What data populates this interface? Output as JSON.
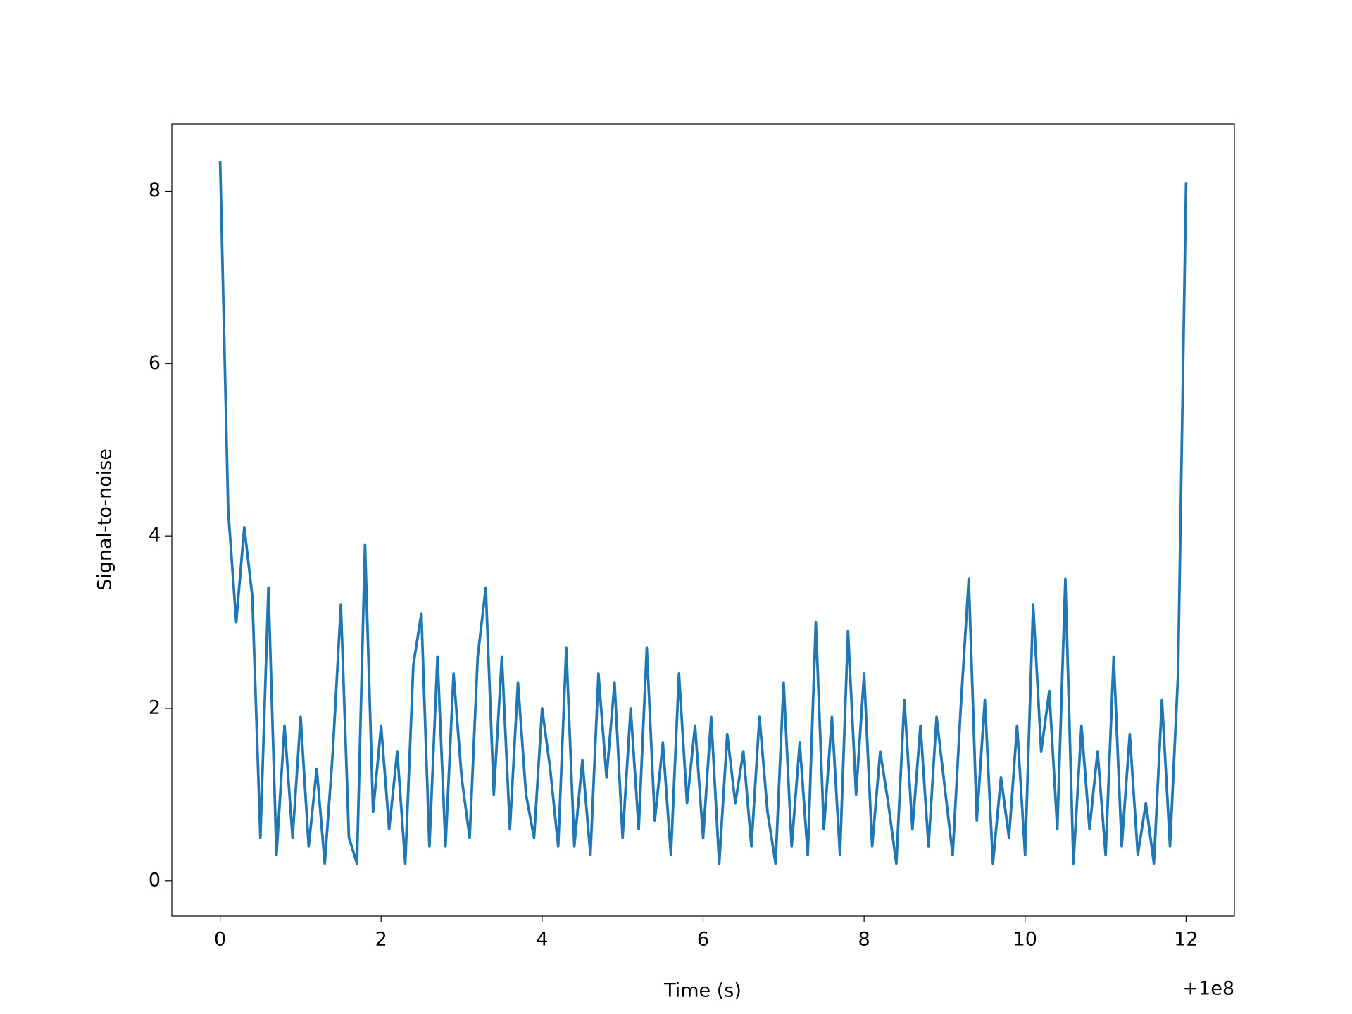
{
  "chart_data": {
    "type": "line",
    "xlabel": "Time (s)",
    "ylabel": "Signal-to-noise",
    "x_offset_label": "+1e8",
    "xlim": [
      -0.6,
      12.6
    ],
    "ylim": [
      -0.41,
      8.78
    ],
    "xticks": [
      0,
      2,
      4,
      6,
      8,
      10,
      12
    ],
    "yticks": [
      0,
      2,
      4,
      6,
      8
    ],
    "grid": false,
    "x": [
      0.0,
      0.1,
      0.2,
      0.3,
      0.4,
      0.5,
      0.6,
      0.7,
      0.8,
      0.9,
      1.0,
      1.1,
      1.2,
      1.3,
      1.4,
      1.5,
      1.6,
      1.7,
      1.8,
      1.9,
      2.0,
      2.1,
      2.2,
      2.3,
      2.4,
      2.5,
      2.6,
      2.7,
      2.8,
      2.9,
      3.0,
      3.1,
      3.2,
      3.3,
      3.4,
      3.5,
      3.6,
      3.7,
      3.8,
      3.9,
      4.0,
      4.1,
      4.2,
      4.3,
      4.4,
      4.5,
      4.6,
      4.7,
      4.8,
      4.9,
      5.0,
      5.1,
      5.2,
      5.3,
      5.4,
      5.5,
      5.6,
      5.7,
      5.8,
      5.9,
      6.0,
      6.1,
      6.2,
      6.3,
      6.4,
      6.5,
      6.6,
      6.7,
      6.8,
      6.9,
      7.0,
      7.1,
      7.2,
      7.3,
      7.4,
      7.5,
      7.6,
      7.7,
      7.8,
      7.9,
      8.0,
      8.1,
      8.2,
      8.3,
      8.4,
      8.5,
      8.6,
      8.7,
      8.8,
      8.9,
      9.0,
      9.1,
      9.2,
      9.3,
      9.4,
      9.5,
      9.6,
      9.7,
      9.8,
      9.9,
      10.0,
      10.1,
      10.2,
      10.3,
      10.4,
      10.5,
      10.6,
      10.7,
      10.8,
      10.9,
      11.0,
      11.1,
      11.2,
      11.3,
      11.4,
      11.5,
      11.6,
      11.7,
      11.8,
      11.9,
      12.0
    ],
    "series": [
      {
        "color": "#1f77b4",
        "values": [
          8.35,
          4.3,
          3.0,
          4.1,
          3.3,
          0.5,
          3.4,
          0.3,
          1.8,
          0.5,
          1.9,
          0.4,
          1.3,
          0.2,
          1.5,
          3.2,
          0.5,
          0.2,
          3.9,
          0.8,
          1.8,
          0.6,
          1.5,
          0.2,
          2.5,
          3.1,
          0.4,
          2.6,
          0.4,
          2.4,
          1.2,
          0.5,
          2.6,
          3.4,
          1.0,
          2.6,
          0.6,
          2.3,
          1.0,
          0.5,
          2.0,
          1.3,
          0.4,
          2.7,
          0.4,
          1.4,
          0.3,
          2.4,
          1.2,
          2.3,
          0.5,
          2.0,
          0.6,
          2.7,
          0.7,
          1.6,
          0.3,
          2.4,
          0.9,
          1.8,
          0.5,
          1.9,
          0.2,
          1.7,
          0.9,
          1.5,
          0.4,
          1.9,
          0.8,
          0.2,
          2.3,
          0.4,
          1.6,
          0.3,
          3.0,
          0.6,
          1.9,
          0.3,
          2.9,
          1.0,
          2.4,
          0.4,
          1.5,
          0.9,
          0.2,
          2.1,
          0.6,
          1.8,
          0.4,
          1.9,
          1.1,
          0.3,
          2.0,
          3.5,
          0.7,
          2.1,
          0.2,
          1.2,
          0.5,
          1.8,
          0.3,
          3.2,
          1.5,
          2.2,
          0.6,
          3.5,
          0.2,
          1.8,
          0.6,
          1.5,
          0.3,
          2.6,
          0.4,
          1.7,
          0.3,
          0.9,
          0.2,
          2.1,
          0.4,
          2.4,
          8.1
        ]
      }
    ]
  }
}
